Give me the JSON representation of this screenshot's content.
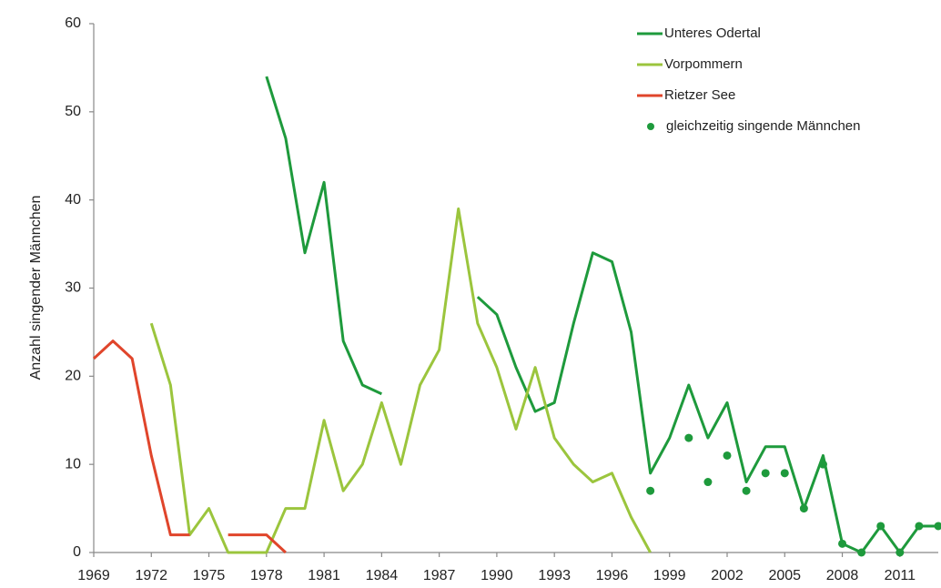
{
  "chart_data": {
    "type": "line",
    "y_label": "Anzahl singender Männchen",
    "x": [
      1969,
      1970,
      1971,
      1972,
      1973,
      1974,
      1975,
      1976,
      1977,
      1978,
      1979,
      1980,
      1981,
      1982,
      1983,
      1984,
      1985,
      1986,
      1987,
      1988,
      1989,
      1990,
      1991,
      1992,
      1993,
      1994,
      1995,
      1996,
      1997,
      1998,
      1999,
      2000,
      2001,
      2002,
      2003,
      2004,
      2005,
      2006,
      2007,
      2008,
      2009,
      2010,
      2011,
      2012,
      2013
    ],
    "series": [
      {
        "name": "Unteres Odertal",
        "color": "#1e9a3c",
        "marker": "line",
        "values": [
          null,
          null,
          null,
          null,
          null,
          null,
          null,
          null,
          null,
          54,
          47,
          34,
          42,
          24,
          19,
          18,
          null,
          null,
          null,
          null,
          29,
          27,
          21,
          16,
          17,
          26,
          34,
          33,
          25,
          9,
          13,
          19,
          13,
          17,
          8,
          12,
          12,
          5,
          11,
          1,
          0,
          3,
          0,
          3,
          3
        ]
      },
      {
        "name": "Vorpommern",
        "color": "#9bc53d",
        "marker": "line",
        "values": [
          null,
          null,
          null,
          26,
          19,
          2,
          5,
          0,
          0,
          0,
          5,
          5,
          15,
          7,
          10,
          17,
          10,
          19,
          23,
          39,
          26,
          21,
          14,
          21,
          13,
          10,
          8,
          9,
          4,
          0,
          null,
          null,
          null,
          null,
          null,
          null,
          null,
          null,
          null,
          null,
          null,
          null,
          null,
          null,
          null
        ]
      },
      {
        "name": "Rietzer See",
        "color": "#e0452b",
        "marker": "line",
        "values": [
          22,
          24,
          22,
          11,
          2,
          2,
          null,
          2,
          2,
          2,
          0,
          null,
          null,
          null,
          null,
          null,
          null,
          null,
          null,
          null,
          null,
          null,
          null,
          null,
          null,
          null,
          null,
          null,
          null,
          null,
          null,
          null,
          null,
          null,
          null,
          null,
          null,
          null,
          null,
          null,
          null,
          null,
          null,
          null,
          null
        ]
      },
      {
        "name": "gleichzeitig singende Männchen",
        "color": "#1e9a3c",
        "marker": "dot",
        "values": [
          null,
          null,
          null,
          null,
          null,
          null,
          null,
          null,
          null,
          null,
          null,
          null,
          null,
          null,
          null,
          null,
          null,
          null,
          null,
          null,
          null,
          null,
          null,
          null,
          null,
          null,
          null,
          null,
          null,
          7,
          null,
          13,
          8,
          11,
          7,
          9,
          9,
          5,
          10,
          1,
          0,
          3,
          0,
          3,
          3
        ]
      }
    ],
    "xlim": [
      1969,
      2013
    ],
    "xticks": [
      1969,
      1972,
      1975,
      1978,
      1981,
      1984,
      1987,
      1990,
      1993,
      1996,
      1999,
      2002,
      2005,
      2008,
      2011
    ],
    "ylim": [
      0,
      60
    ],
    "yticks": [
      0,
      10,
      20,
      30,
      40,
      50,
      60
    ],
    "grid": false,
    "legend": "upper right"
  }
}
